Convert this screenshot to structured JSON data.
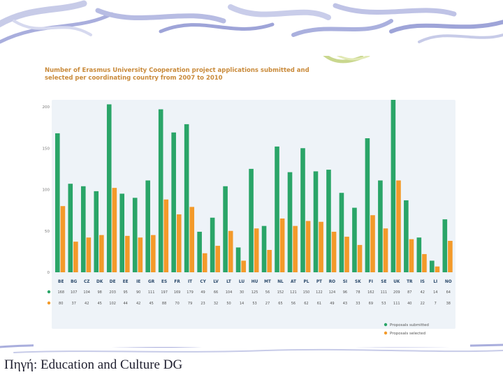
{
  "slide": {
    "source_caption": "Πηγή: Education and Culture DG"
  },
  "colors": {
    "submitted": "#2aa568",
    "selected": "#f39a2a",
    "plot_bg": "#eef3f8",
    "title": "#c98a3a"
  },
  "chart_data": {
    "type": "bar",
    "title": "Number of Erasmus University Cooperation project applications submitted and selected per coordinating country from 2007 to 2010",
    "xlabel": "",
    "ylabel": "",
    "ylim": [
      0,
      200
    ],
    "yticks": [
      "0",
      "50",
      "100",
      "150",
      "200"
    ],
    "grid": false,
    "legend_position": "bottom-right",
    "categories": [
      "BE",
      "BG",
      "CZ",
      "DK",
      "DE",
      "EE",
      "IE",
      "GR",
      "ES",
      "FR",
      "IT",
      "CY",
      "LV",
      "LT",
      "LU",
      "HU",
      "MT",
      "NL",
      "AT",
      "PL",
      "PT",
      "RO",
      "SI",
      "SK",
      "FI",
      "SE",
      "UK",
      "TR",
      "IS",
      "LI",
      "NO"
    ],
    "series": [
      {
        "name": "Proposals submitted",
        "values": [
          168,
          107,
          104,
          98,
          203,
          95,
          90,
          111,
          197,
          169,
          179,
          49,
          66,
          104,
          30,
          125,
          56,
          152,
          121,
          150,
          122,
          124,
          96,
          78,
          162,
          111,
          209,
          87,
          42,
          14,
          64
        ],
        "labels": [
          "168",
          "107",
          "104",
          "98",
          "203",
          "95",
          "90",
          "111",
          "197",
          "169",
          "179",
          "49",
          "66",
          "104",
          "30",
          "125",
          "56",
          "152",
          "121",
          "150",
          "122",
          "124",
          "96",
          "78",
          "162",
          "111",
          "209",
          "87",
          "42",
          "14",
          "64"
        ]
      },
      {
        "name": "Proposals selected",
        "values": [
          80,
          37,
          42,
          45,
          102,
          44,
          42,
          45,
          88,
          70,
          79,
          23,
          32,
          50,
          14,
          53,
          27,
          65,
          56,
          62,
          61,
          49,
          43,
          33,
          69,
          53,
          111,
          40,
          22,
          7,
          38
        ],
        "labels": [
          "80",
          "37",
          "42",
          "45",
          "102",
          "44",
          "42",
          "45",
          "88",
          "70",
          "79",
          "23",
          "32",
          "50",
          "14",
          "53",
          "27",
          "65",
          "56",
          "62",
          "61",
          "49",
          "43",
          "33",
          "69",
          "53",
          "111",
          "40",
          "22",
          "7",
          "38"
        ]
      }
    ]
  }
}
